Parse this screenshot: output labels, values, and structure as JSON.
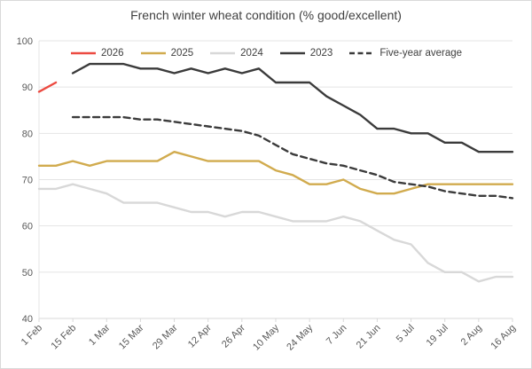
{
  "title": "French winter wheat condition (% good/excellent)",
  "chart_data": {
    "type": "line",
    "categories": [
      "1 Feb",
      "8 Feb",
      "15 Feb",
      "22 Feb",
      "1 Mar",
      "8 Mar",
      "15 Mar",
      "22 Mar",
      "29 Mar",
      "5 Apr",
      "12 Apr",
      "19 Apr",
      "26 Apr",
      "3 May",
      "10 May",
      "17 May",
      "24 May",
      "31 May",
      "7 Jun",
      "14 Jun",
      "21 Jun",
      "28 Jun",
      "5 Jul",
      "12 Jul",
      "19 Jul",
      "26 Jul",
      "2 Aug",
      "9 Aug",
      "16 Aug"
    ],
    "x_tick_labels_shown": [
      "1 Feb",
      "15 Feb",
      "1 Mar",
      "15 Mar",
      "29 Mar",
      "12 Apr",
      "26 Apr",
      "10 May",
      "24 May",
      "7 Jun",
      "21 Jun",
      "5 Jul",
      "19 Jul",
      "2 Aug",
      "16 Aug"
    ],
    "xtick_label_every": 2,
    "series": [
      {
        "name": "2026",
        "color": "#ec4a41",
        "dash": null,
        "values": [
          89,
          91,
          null,
          null,
          null,
          null,
          null,
          null,
          null,
          null,
          null,
          null,
          null,
          null,
          null,
          null,
          null,
          null,
          null,
          null,
          null,
          null,
          null,
          null,
          null,
          null,
          null,
          null,
          null
        ]
      },
      {
        "name": "2025",
        "color": "#d1ab4e",
        "dash": null,
        "values": [
          73,
          73,
          74,
          73,
          74,
          74,
          74,
          74,
          76,
          75,
          74,
          74,
          74,
          74,
          72,
          71,
          69,
          69,
          70,
          68,
          67,
          67,
          68,
          69,
          69,
          69,
          69,
          69,
          69
        ]
      },
      {
        "name": "2024",
        "color": "#d8d8d8",
        "dash": null,
        "values": [
          68,
          68,
          69,
          68,
          67,
          65,
          65,
          65,
          64,
          63,
          63,
          62,
          63,
          63,
          62,
          61,
          61,
          61,
          62,
          61,
          59,
          57,
          56,
          52,
          50,
          50,
          48,
          49,
          49
        ]
      },
      {
        "name": "2023",
        "color": "#3b3b3b",
        "dash": null,
        "values": [
          null,
          null,
          93,
          95,
          95,
          95,
          94,
          94,
          93,
          94,
          93,
          94,
          93,
          94,
          91,
          91,
          91,
          88,
          86,
          84,
          81,
          81,
          80,
          80,
          78,
          78,
          76,
          76,
          76
        ]
      },
      {
        "name": "Five-year average",
        "color": "#3b3b3b",
        "dash": "7 4.5",
        "values": [
          null,
          null,
          83.5,
          83.5,
          83.5,
          83.5,
          83,
          83,
          82.5,
          82,
          81.5,
          81,
          80.5,
          79.5,
          77.5,
          75.5,
          74.5,
          73.5,
          73,
          72,
          71,
          69.5,
          69,
          68.5,
          67.5,
          67,
          66.5,
          66.5,
          66
        ]
      }
    ],
    "ylim": [
      40,
      100
    ],
    "ytick_step": 10,
    "y_tick_labels": [
      "40",
      "50",
      "60",
      "70",
      "80",
      "90",
      "100"
    ],
    "xlabel": "",
    "ylabel": "",
    "grid": "horizontal-only",
    "legend_position": "top-center"
  },
  "colors": {
    "background": "#ffffff",
    "border": "#d9d9d9",
    "grid": "#e4e4e4",
    "axis_line": "#d9d9d9",
    "axis_text": "#595959",
    "title_text": "#404040"
  }
}
